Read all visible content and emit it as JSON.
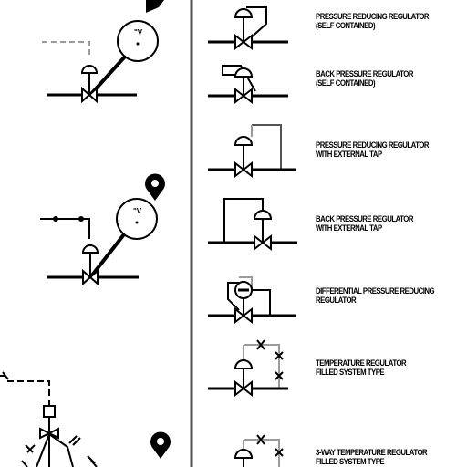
{
  "colors": {
    "line": "#000000",
    "grey_line": "#9a9a9a",
    "separator": "#555555",
    "background": "#ffffff"
  },
  "left_panel": {
    "gauge_symbol": "\"V",
    "marker_icons": [
      "pin-marker-icon",
      "pin-marker-icon",
      "pin-marker-icon"
    ]
  },
  "symbols": [
    {
      "id": "prv-self",
      "line1": "PRESSURE REDUCING REGULATOR",
      "line2": "(SELF CONTAINED)"
    },
    {
      "id": "bpr-self",
      "line1": "BACK PRESSURE REGULATOR",
      "line2": "(SELF CONTAINED)"
    },
    {
      "id": "prv-ext",
      "line1": "PRESSURE REDUCING REGULATOR",
      "line2": "WITH EXTERNAL TAP"
    },
    {
      "id": "bpr-ext",
      "line1": "BACK PRESSURE REGULATOR",
      "line2": "WITH EXTERNAL TAP"
    },
    {
      "id": "diff",
      "line1": "DIFFERENTIAL PRESSURE REDUCING",
      "line2": "REGULATOR"
    },
    {
      "id": "temp",
      "line1": "TEMPERATURE REGULATOR",
      "line2": "FILLED SYSTEM TYPE"
    },
    {
      "id": "temp3",
      "line1": "3-WAY TEMPERATURE REGULATOR",
      "line2": "FILLED SYSTEM TYPE"
    }
  ]
}
